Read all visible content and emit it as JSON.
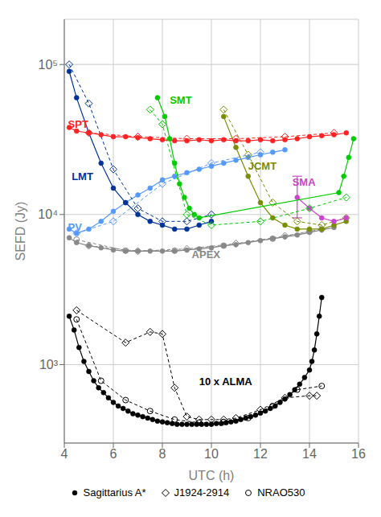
{
  "chart_data": {
    "type": "line",
    "title": "",
    "xlabel": "UTC (h)",
    "ylabel": "SEFD (Jy)",
    "log": "y",
    "grid": true,
    "legend": "bottom",
    "xlim": [
      4,
      16
    ],
    "xticks": [
      4,
      6,
      8,
      10,
      12,
      14,
      16
    ],
    "ylim": [
      300,
      200000
    ],
    "yticks": [
      {
        "value": 1000,
        "label": "10³"
      },
      {
        "value": 10000,
        "label": "10⁴"
      },
      {
        "value": 100000,
        "label": "10⁵"
      }
    ],
    "series": [
      {
        "name": "Sagittarius A*",
        "color": "#000000",
        "marker": "circle",
        "line_style": "solid",
        "x": [
          4.2,
          4.4,
          4.6,
          4.8,
          5.0,
          5.2,
          5.4,
          5.6,
          5.8,
          6.0,
          6.2,
          6.4,
          6.6,
          6.8,
          7.0,
          7.2,
          7.4,
          7.6,
          7.8,
          8.0,
          8.2,
          8.4,
          8.6,
          8.8,
          9.0,
          9.2,
          9.4,
          9.6,
          9.8,
          10.0,
          10.2,
          10.4,
          10.6,
          10.8,
          11.0,
          11.2,
          11.4,
          11.6,
          11.8,
          12.0,
          12.2,
          12.4,
          12.6,
          12.8,
          13.0,
          13.2,
          13.4,
          13.6,
          13.8,
          14.0,
          14.1,
          14.2,
          14.3,
          14.4,
          14.5
        ],
        "values": [
          2100,
          1700,
          1300,
          1050,
          900,
          780,
          700,
          650,
          600,
          560,
          530,
          510,
          490,
          470,
          460,
          450,
          440,
          430,
          420,
          415,
          410,
          405,
          400,
          400,
          400,
          400,
          400,
          400,
          400,
          400,
          405,
          405,
          410,
          415,
          420,
          430,
          440,
          450,
          460,
          475,
          490,
          510,
          530,
          560,
          590,
          630,
          680,
          740,
          820,
          920,
          1050,
          1250,
          1600,
          2100,
          2800
        ]
      },
      {
        "name": "J1924-2914",
        "color": "#000000",
        "marker": "open_diamond",
        "line_style": "dashed",
        "x": [
          4.5,
          6.5,
          7.5,
          8.0,
          8.5,
          9.0,
          9.5,
          10.0,
          10.5,
          11.0,
          12.0,
          13.0,
          14.0,
          14.3
        ],
        "values": [
          2300,
          1400,
          1650,
          1600,
          700,
          450,
          430,
          430,
          430,
          440,
          500,
          600,
          620,
          620
        ]
      },
      {
        "name": "NRAO530",
        "color": "#000000",
        "marker": "open_circle",
        "line_style": "dashed",
        "x": [
          4.5,
          5.5,
          6.5,
          7.5,
          8.5,
          9.5,
          10.5,
          11.5,
          12.5,
          13.5,
          14.5
        ],
        "values": [
          2000,
          780,
          580,
          490,
          430,
          410,
          415,
          440,
          530,
          680,
          720
        ]
      },
      {
        "name": "Sagittarius A*",
        "color": "#888888",
        "marker": "circle",
        "line_style": "solid",
        "x": [
          4.2,
          4.5,
          5.0,
          5.5,
          6.0,
          6.5,
          7.0,
          7.5,
          8.0,
          8.5,
          9.0,
          9.5,
          10.0,
          10.5,
          11.0,
          11.5,
          12.0,
          12.5,
          13.0,
          13.5,
          14.0,
          14.5,
          15.0
        ],
        "values": [
          7000,
          6500,
          6200,
          6000,
          5800,
          5700,
          5700,
          5700,
          5700,
          5700,
          5800,
          5900,
          6000,
          6200,
          6300,
          6500,
          6700,
          6900,
          7100,
          7300,
          7600,
          7900,
          8200
        ]
      },
      {
        "name": "J1924-2914",
        "color": "#888888",
        "marker": "open_diamond",
        "line_style": "dashed",
        "x": [
          5.0,
          7.0,
          9.0,
          11.0,
          13.0,
          14.5
        ],
        "values": [
          6200,
          5700,
          5900,
          6400,
          7200,
          8000
        ]
      },
      {
        "name": "NRAO530",
        "color": "#888888",
        "marker": "open_circle",
        "line_style": "dashed",
        "x": [
          4.5,
          6.5,
          8.5,
          10.5,
          12.5,
          14.0
        ],
        "values": [
          6800,
          5750,
          5750,
          6200,
          6900,
          7700
        ]
      },
      {
        "name": "Sagittarius A*",
        "color": "#5599ff",
        "marker": "circle",
        "line_style": "solid",
        "x": [
          4.2,
          4.5,
          5.0,
          5.5,
          6.0,
          6.5,
          7.0,
          7.5,
          8.0,
          8.5,
          9.0,
          9.5,
          10.0,
          10.5,
          11.0,
          11.5,
          12.0,
          12.5,
          13.0
        ],
        "values": [
          8000,
          7500,
          8000,
          9000,
          10500,
          12000,
          13500,
          15000,
          17000,
          18000,
          19000,
          20000,
          21000,
          22000,
          23000,
          24000,
          25000,
          26000,
          27000
        ]
      },
      {
        "name": "J1924-2914",
        "color": "#5599ff",
        "marker": "open_diamond",
        "line_style": "dashed",
        "x": [
          4.5,
          6.0,
          8.0,
          10.0,
          12.0
        ],
        "values": [
          7500,
          9000,
          16000,
          22000,
          26000
        ]
      },
      {
        "name": "Sagittarius A*",
        "color": "#7a8c00",
        "marker": "circle",
        "line_style": "solid",
        "x": [
          10.5,
          11.0,
          11.5,
          12.0,
          12.5,
          13.0,
          13.5,
          14.0,
          14.5,
          15.0,
          15.5
        ],
        "values": [
          45000,
          28000,
          18000,
          12000,
          9500,
          8500,
          8000,
          8000,
          8000,
          8500,
          9000
        ]
      },
      {
        "name": "J1924-2914",
        "color": "#7a8c00",
        "marker": "open_diamond",
        "line_style": "dashed",
        "x": [
          10.5,
          11.5,
          12.5,
          13.5,
          14.5,
          15.5
        ],
        "values": [
          50000,
          25000,
          12000,
          9000,
          8500,
          9500
        ]
      },
      {
        "name": "Sagittarius A*",
        "color": "#cc44cc",
        "marker": "circle",
        "line_style": "solid",
        "x": [
          13.5,
          14.0,
          14.5,
          15.0,
          15.5
        ],
        "values": [
          13000,
          11000,
          9500,
          9000,
          9500
        ]
      },
      {
        "name": "Sagittarius A*",
        "color": "#003399",
        "marker": "circle",
        "line_style": "solid",
        "x": [
          4.2,
          4.5,
          5.0,
          5.5,
          6.0,
          6.5,
          7.0,
          7.5,
          8.0,
          8.5,
          9.0,
          9.5,
          10.0
        ],
        "values": [
          90000,
          60000,
          35000,
          22000,
          15000,
          12000,
          10000,
          9000,
          8500,
          8000,
          8000,
          8500,
          9000
        ]
      },
      {
        "name": "J1924-2914",
        "color": "#003399",
        "marker": "open_diamond",
        "line_style": "dashed",
        "x": [
          4.2,
          5.0,
          6.0,
          7.0,
          8.0,
          9.0,
          10.0
        ],
        "values": [
          100000,
          55000,
          20000,
          11000,
          9000,
          9000,
          10000
        ]
      },
      {
        "name": "Sagittarius A*",
        "color": "#ff2222",
        "marker": "circle",
        "line_style": "solid",
        "x": [
          4.2,
          4.5,
          5.0,
          5.5,
          6.0,
          6.5,
          7.0,
          7.5,
          8.0,
          8.5,
          9.0,
          9.5,
          10.0,
          10.5,
          11.0,
          11.5,
          12.0,
          12.5,
          13.0,
          13.5,
          14.0,
          14.5,
          15.0,
          15.5
        ],
        "values": [
          38000,
          36000,
          35000,
          34000,
          33000,
          33000,
          32500,
          32000,
          31500,
          31000,
          31000,
          31500,
          31000,
          31500,
          31000,
          31000,
          31500,
          31000,
          31500,
          32000,
          33000,
          33500,
          34000,
          35000
        ]
      },
      {
        "name": "J1924-2914",
        "color": "#ff2222",
        "marker": "open_diamond",
        "line_style": "dashed",
        "x": [
          5.0,
          7.0,
          9.0,
          11.0,
          13.0,
          15.0
        ],
        "values": [
          35000,
          33000,
          32000,
          32000,
          33000,
          35000
        ]
      },
      {
        "name": "Sagittarius A*",
        "color": "#00cc00",
        "marker": "circle",
        "line_style": "solid",
        "x": [
          7.8,
          8.1,
          8.3,
          8.5,
          8.7,
          8.9,
          9.1,
          9.3,
          9.5,
          15.2,
          15.4,
          15.6,
          15.8
        ],
        "values": [
          60000,
          45000,
          32000,
          22000,
          16000,
          13000,
          11000,
          10000,
          9500,
          14000,
          18000,
          24000,
          32000
        ]
      },
      {
        "name": "J1924-2914",
        "color": "#00cc00",
        "marker": "open_diamond",
        "line_style": "dashed",
        "x": [
          7.5,
          8.0,
          9.0,
          10.0,
          12.0,
          14.0,
          15.5
        ],
        "values": [
          50000,
          40000,
          10000,
          8500,
          9000,
          11000,
          13000
        ]
      }
    ],
    "error_bars": [
      {
        "x": 13.5,
        "y": 13000,
        "lower": 3500,
        "upper": 5000,
        "color": "#cc44cc"
      }
    ],
    "annotations": [
      {
        "text": "SMT",
        "x": 8.3,
        "y": 55000,
        "color": "#00cc00"
      },
      {
        "text": "SPT",
        "x": 4.15,
        "y": 38000,
        "color": "#ff2222"
      },
      {
        "text": "LMT",
        "x": 4.3,
        "y": 17000,
        "color": "#003399"
      },
      {
        "text": "PV",
        "x": 4.15,
        "y": 7800,
        "color": "#5599ff"
      },
      {
        "text": "JCMT",
        "x": 11.5,
        "y": 20000,
        "color": "#7a8c00"
      },
      {
        "text": "SMA",
        "x": 13.3,
        "y": 15500,
        "color": "#cc44cc"
      },
      {
        "text": "APEX",
        "x": 9.2,
        "y": 5100,
        "color": "#888888"
      },
      {
        "text": "10 x ALMA",
        "x": 9.5,
        "y": 730,
        "color": "#000000"
      }
    ]
  }
}
